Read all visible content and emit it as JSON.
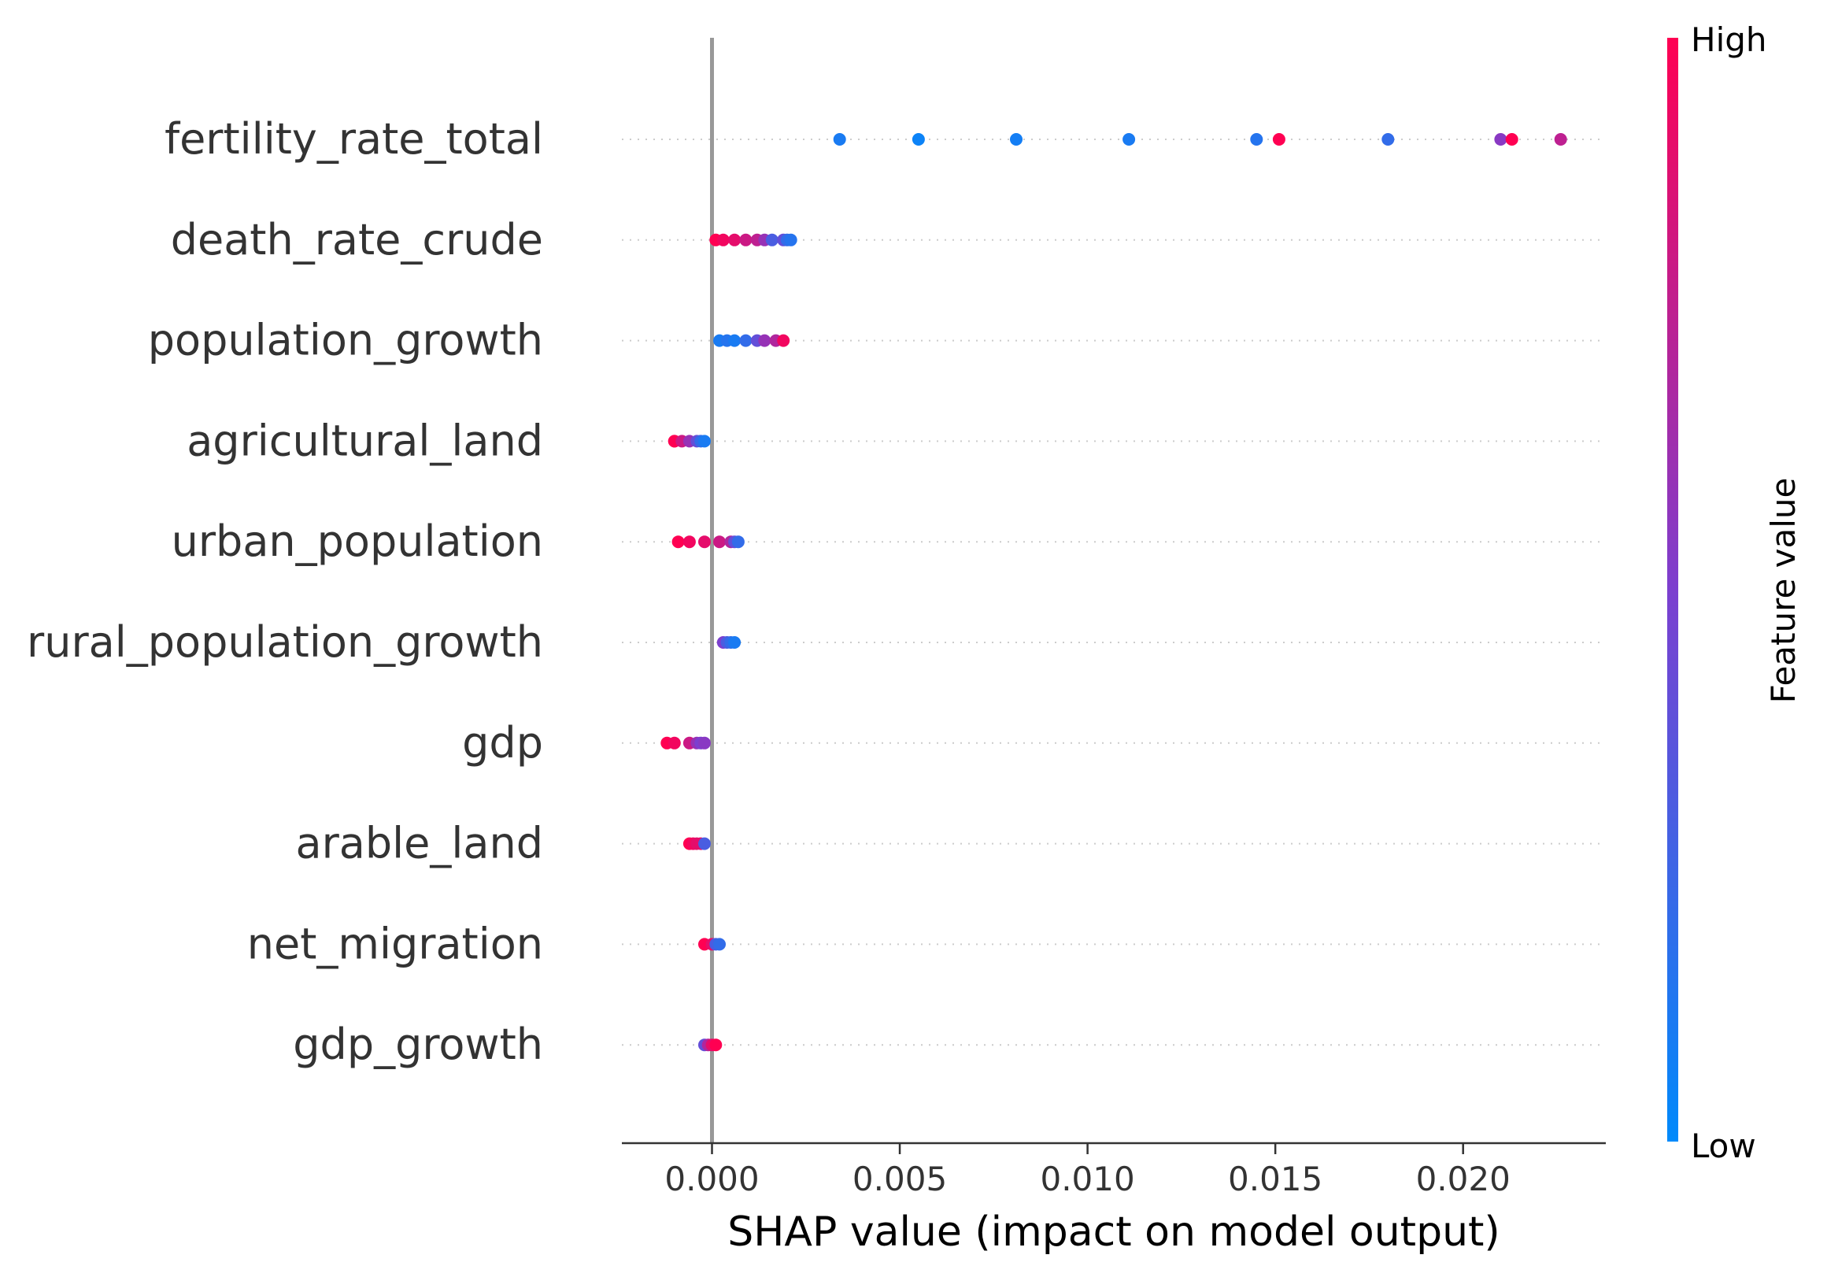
{
  "chart_data": {
    "type": "scatter",
    "subtype": "shap_beeswarm",
    "xlabel": "SHAP value (impact on model output)",
    "xlim": [
      -0.0024,
      0.0238
    ],
    "xticks": [
      0.0,
      0.005,
      0.01,
      0.015,
      0.02
    ],
    "xtick_labels": [
      "0.000",
      "0.005",
      "0.010",
      "0.015",
      "0.020"
    ],
    "zero_line": 0,
    "features": [
      {
        "name": "fertility_rate_total",
        "points": [
          {
            "x": 0.0034,
            "f": 0.1
          },
          {
            "x": 0.0055,
            "f": 0.05
          },
          {
            "x": 0.0081,
            "f": 0.08
          },
          {
            "x": 0.0111,
            "f": 0.1
          },
          {
            "x": 0.0145,
            "f": 0.15
          },
          {
            "x": 0.0151,
            "f": 1.0
          },
          {
            "x": 0.018,
            "f": 0.2
          },
          {
            "x": 0.021,
            "f": 0.55
          },
          {
            "x": 0.0213,
            "f": 1.0
          },
          {
            "x": 0.0226,
            "f": 0.75
          }
        ]
      },
      {
        "name": "death_rate_crude",
        "points": [
          {
            "x": 0.0001,
            "f": 1.0
          },
          {
            "x": 0.0003,
            "f": 0.95
          },
          {
            "x": 0.0006,
            "f": 0.9
          },
          {
            "x": 0.0009,
            "f": 0.8
          },
          {
            "x": 0.0012,
            "f": 0.75
          },
          {
            "x": 0.0014,
            "f": 0.6
          },
          {
            "x": 0.0016,
            "f": 0.3
          },
          {
            "x": 0.0019,
            "f": 0.4
          },
          {
            "x": 0.002,
            "f": 0.2
          },
          {
            "x": 0.0021,
            "f": 0.15
          }
        ]
      },
      {
        "name": "population_growth",
        "points": [
          {
            "x": 0.0002,
            "f": 0.1
          },
          {
            "x": 0.0004,
            "f": 0.15
          },
          {
            "x": 0.0006,
            "f": 0.1
          },
          {
            "x": 0.0009,
            "f": 0.2
          },
          {
            "x": 0.0012,
            "f": 0.4
          },
          {
            "x": 0.0014,
            "f": 0.6
          },
          {
            "x": 0.0017,
            "f": 0.7
          },
          {
            "x": 0.0019,
            "f": 0.95
          }
        ]
      },
      {
        "name": "agricultural_land",
        "points": [
          {
            "x": -0.001,
            "f": 1.0
          },
          {
            "x": -0.001,
            "f": 1.0
          },
          {
            "x": -0.0008,
            "f": 0.8
          },
          {
            "x": -0.0006,
            "f": 0.6
          },
          {
            "x": -0.0004,
            "f": 0.4
          },
          {
            "x": -0.0003,
            "f": 0.2
          },
          {
            "x": -0.0002,
            "f": 0.1
          }
        ]
      },
      {
        "name": "urban_population",
        "points": [
          {
            "x": -0.0009,
            "f": 1.0
          },
          {
            "x": -0.0006,
            "f": 0.95
          },
          {
            "x": -0.0002,
            "f": 0.9
          },
          {
            "x": 0.0002,
            "f": 0.8
          },
          {
            "x": 0.0005,
            "f": 0.7
          },
          {
            "x": 0.0006,
            "f": 0.4
          },
          {
            "x": 0.0007,
            "f": 0.2
          }
        ]
      },
      {
        "name": "rural_population_growth",
        "points": [
          {
            "x": 0.0003,
            "f": 0.5
          },
          {
            "x": 0.0004,
            "f": 0.3
          },
          {
            "x": 0.0005,
            "f": 0.2
          },
          {
            "x": 0.0006,
            "f": 0.1
          }
        ]
      },
      {
        "name": "gdp",
        "points": [
          {
            "x": -0.0012,
            "f": 1.0
          },
          {
            "x": -0.001,
            "f": 0.95
          },
          {
            "x": -0.0006,
            "f": 0.8
          },
          {
            "x": -0.0004,
            "f": 0.6
          },
          {
            "x": -0.0003,
            "f": 0.5
          },
          {
            "x": -0.0002,
            "f": 0.55
          }
        ]
      },
      {
        "name": "arable_land",
        "points": [
          {
            "x": -0.0006,
            "f": 1.0
          },
          {
            "x": -0.0005,
            "f": 0.95
          },
          {
            "x": -0.0004,
            "f": 0.9
          },
          {
            "x": -0.0003,
            "f": 0.9
          },
          {
            "x": -0.0002,
            "f": 0.3
          }
        ]
      },
      {
        "name": "net_migration",
        "points": [
          {
            "x": -0.0002,
            "f": 1.0
          },
          {
            "x": 0.0,
            "f": 0.9
          },
          {
            "x": 0.0001,
            "f": 0.3
          },
          {
            "x": 0.0002,
            "f": 0.2
          }
        ]
      },
      {
        "name": "gdp_growth",
        "points": [
          {
            "x": -0.0002,
            "f": 0.4
          },
          {
            "x": -0.0001,
            "f": 0.7
          },
          {
            "x": 0.0,
            "f": 0.9
          },
          {
            "x": 0.0001,
            "f": 1.0
          }
        ]
      }
    ],
    "colorbar": {
      "label": "Feature value",
      "high_label": "High",
      "low_label": "Low",
      "low_color": "#008afb",
      "mid_color": "#7c3fcf",
      "high_color": "#ff0052"
    }
  }
}
